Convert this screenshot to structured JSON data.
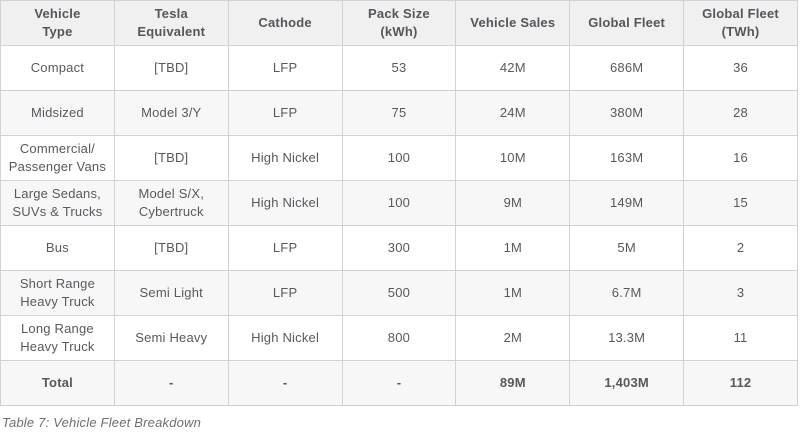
{
  "chart_data": {
    "type": "table",
    "title": "Table 7: Vehicle Fleet Breakdown",
    "columns": [
      "Vehicle\nType",
      "Tesla\nEquivalent",
      "Cathode",
      "Pack Size\n(kWh)",
      "Vehicle Sales",
      "Global Fleet",
      "Global Fleet\n(TWh)"
    ],
    "rows": [
      [
        "Compact",
        "[TBD]",
        "LFP",
        "53",
        "42M",
        "686M",
        "36"
      ],
      [
        "Midsized",
        "Model 3/Y",
        "LFP",
        "75",
        "24M",
        "380M",
        "28"
      ],
      [
        "Commercial/\nPassenger Vans",
        "[TBD]",
        "High Nickel",
        "100",
        "10M",
        "163M",
        "16"
      ],
      [
        "Large Sedans,\nSUVs & Trucks",
        "Model S/X,\nCybertruck",
        "High Nickel",
        "100",
        "9M",
        "149M",
        "15"
      ],
      [
        "Bus",
        "[TBD]",
        "LFP",
        "300",
        "1M",
        "5M",
        "2"
      ],
      [
        "Short Range\nHeavy Truck",
        "Semi Light",
        "LFP",
        "500",
        "1M",
        "6.7M",
        "3"
      ],
      [
        "Long Range\nHeavy Truck",
        "Semi Heavy",
        "High Nickel",
        "800",
        "2M",
        "13.3M",
        "11"
      ]
    ],
    "total_row": [
      "Total",
      "-",
      "-",
      "-",
      "89M",
      "1,403M",
      "112"
    ]
  },
  "caption": "Table 7: Vehicle Fleet Breakdown",
  "colors": {
    "header_bg": "#f0f0f1",
    "stripe_bg": "#f7f7f8",
    "border": "#d2d2d2",
    "text": "#58595c",
    "caption_text": "#6d6e71"
  }
}
